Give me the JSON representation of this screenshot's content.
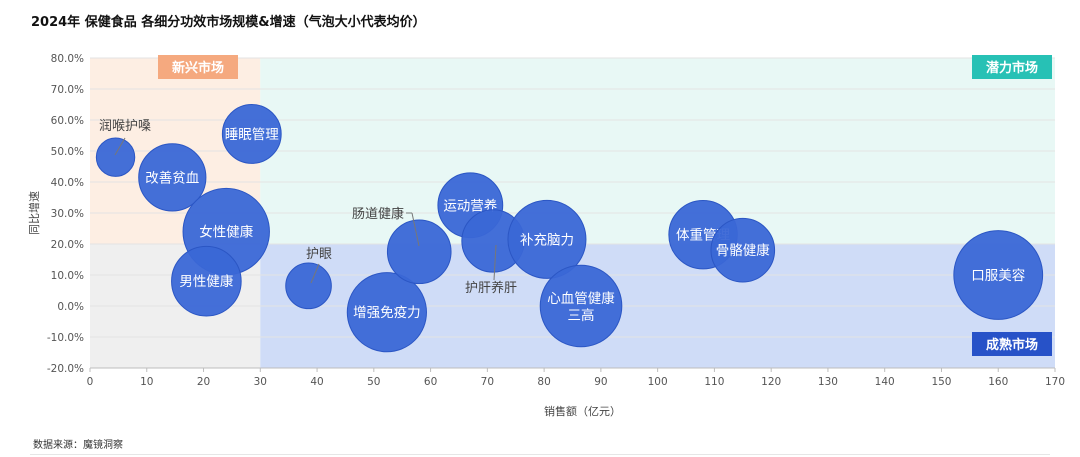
{
  "title": "2024年 保健食品 各细分功效市场规模&增速（气泡大小代表均价）",
  "source": "数据来源：魔镜洞察",
  "colors": {
    "bubble": "#3a67d6",
    "bubble_edge": "#2b56c4",
    "emerging_bg": "#fdeee3",
    "potential_bg": "#e8f8f5",
    "mature_bg": "#cfdcf7",
    "lowgrowth_bg": "#efefef",
    "emerging_badge": "#f5a97f",
    "potential_badge": "#27c1b5",
    "mature_badge": "#2752c8",
    "grid": "#e3e3e3",
    "axis_text": "#555555"
  },
  "chart_data": {
    "type": "scatter",
    "title": "2024年 保健食品 各细分功效市场规模&增速（气泡大小代表均价）",
    "xlabel": "销售额（亿元）",
    "ylabel": "同比增速",
    "xlim": [
      0,
      170
    ],
    "ylim": [
      -20,
      80
    ],
    "x_ticks": [
      0,
      10,
      20,
      30,
      40,
      50,
      60,
      70,
      80,
      90,
      100,
      110,
      120,
      130,
      140,
      150,
      160,
      170
    ],
    "y_ticks": [
      -20,
      -10,
      0,
      10,
      20,
      30,
      40,
      50,
      60,
      70,
      80
    ],
    "y_tick_labels": [
      "-20.0%",
      "-10.0%",
      "0.0%",
      "10.0%",
      "20.0%",
      "30.0%",
      "40.0%",
      "50.0%",
      "60.0%",
      "70.0%",
      "80.0%"
    ],
    "grid": "horizontal",
    "quadrants": {
      "x_split": 30,
      "y_split": 20,
      "labels": {
        "emerging": "新兴市场",
        "potential": "潜力市场",
        "mature": "成熟市场"
      }
    },
    "points": [
      {
        "name": "润喉护嗓",
        "x": 4.5,
        "y": 48,
        "size": 3.2,
        "label_outside": true
      },
      {
        "name": "睡眠管理",
        "x": 28.5,
        "y": 55.5,
        "size": 4.9
      },
      {
        "name": "改善贫血",
        "x": 14.5,
        "y": 41.5,
        "size": 5.6
      },
      {
        "name": "女性健康",
        "x": 24,
        "y": 24,
        "size": 7.2
      },
      {
        "name": "男性健康",
        "x": 20.5,
        "y": 8,
        "size": 5.8
      },
      {
        "name": "护眼",
        "x": 38.5,
        "y": 6.5,
        "size": 3.8,
        "label_outside": true
      },
      {
        "name": "增强免疫力",
        "x": 52.3,
        "y": -2,
        "size": 6.6
      },
      {
        "name": "肠道健康",
        "x": 58,
        "y": 17.5,
        "size": 5.3,
        "label_outside": true
      },
      {
        "name": "运动营养",
        "x": 67,
        "y": 32.5,
        "size": 5.4
      },
      {
        "name": "护肝养肝",
        "x": 71,
        "y": 21,
        "size": 5.2,
        "label_outside": true
      },
      {
        "name": "补充脑力",
        "x": 80.5,
        "y": 21.5,
        "size": 6.5
      },
      {
        "name": "心血管健康\n三高",
        "x": 86.5,
        "y": 0,
        "size": 6.8
      },
      {
        "name": "体重管理",
        "x": 108,
        "y": 23,
        "size": 5.7
      },
      {
        "name": "骨骼健康",
        "x": 115,
        "y": 18,
        "size": 5.3
      },
      {
        "name": "口服美容",
        "x": 160,
        "y": 10,
        "size": 7.4
      }
    ]
  }
}
